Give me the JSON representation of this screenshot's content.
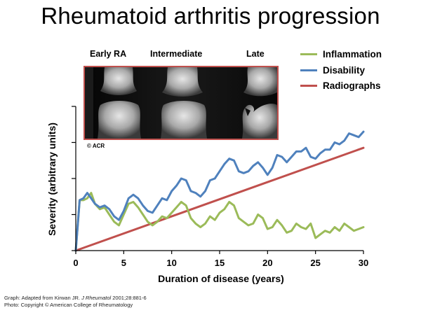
{
  "title": "Rheumatoid arthritis progression",
  "image_panel": {
    "labels": [
      "Early RA",
      "Intermediate",
      "Late"
    ],
    "credit": "© ACR"
  },
  "colors": {
    "inflammation": "#9bbb59",
    "disability": "#4f81bd",
    "radiographs": "#c0504d",
    "frame": "#c0504d"
  },
  "footnotes": {
    "graph_prefix": "Graph: Adapted from Kirwan JR. ",
    "graph_journal": "J Rheumatol",
    "graph_suffix": " 2001;28:881-6",
    "photo": "Photo: Copyright © American College of Rheumatology"
  },
  "chart_data": {
    "type": "line",
    "xlabel": "Duration of disease (years)",
    "ylabel": "Severity (arbitrary units)",
    "xlim": [
      0,
      30
    ],
    "ylim": [
      0,
      4
    ],
    "xticks": [
      0,
      5,
      10,
      15,
      20,
      25,
      30
    ],
    "yticks": [
      0,
      1,
      2,
      3,
      4
    ],
    "show_ytick_labels": false,
    "grid": false,
    "legend_position": "top-right",
    "series": [
      {
        "name": "Inflammation",
        "color": "#9bbb59",
        "x": [
          0,
          0.4,
          0.8,
          1.2,
          1.6,
          2.0,
          2.5,
          3.0,
          3.5,
          4.0,
          4.5,
          5.0,
          5.5,
          6.0,
          6.5,
          7.0,
          7.5,
          8.0,
          8.5,
          9.0,
          9.5,
          10.0,
          10.5,
          11.0,
          11.5,
          12.0,
          12.5,
          13.0,
          13.5,
          14.0,
          14.5,
          15.0,
          15.5,
          16.0,
          16.5,
          17.0,
          17.5,
          18.0,
          18.5,
          19.0,
          19.5,
          20.0,
          20.5,
          21.0,
          21.5,
          22.0,
          22.5,
          23.0,
          23.5,
          24.0,
          24.5,
          25.0,
          25.5,
          26.0,
          26.5,
          27.0,
          27.5,
          28.0,
          28.5,
          29.0,
          29.5,
          30.0
        ],
        "values": [
          0.0,
          1.4,
          1.4,
          1.45,
          1.6,
          1.3,
          1.15,
          1.2,
          1.0,
          0.8,
          0.7,
          1.0,
          1.3,
          1.35,
          1.2,
          1.0,
          0.8,
          0.7,
          0.8,
          0.95,
          0.9,
          1.05,
          1.2,
          1.35,
          1.25,
          0.9,
          0.75,
          0.65,
          0.75,
          0.95,
          0.85,
          1.05,
          1.15,
          1.35,
          1.25,
          0.9,
          0.8,
          0.7,
          0.75,
          1.0,
          0.9,
          0.6,
          0.65,
          0.85,
          0.7,
          0.5,
          0.55,
          0.75,
          0.65,
          0.6,
          0.75,
          0.35,
          0.45,
          0.55,
          0.5,
          0.65,
          0.55,
          0.75,
          0.65,
          0.55,
          0.6,
          0.65
        ]
      },
      {
        "name": "Disability",
        "color": "#4f81bd",
        "x": [
          0,
          0.4,
          0.8,
          1.2,
          1.6,
          2.0,
          2.5,
          3.0,
          3.5,
          4.0,
          4.5,
          5.0,
          5.5,
          6.0,
          6.5,
          7.0,
          7.5,
          8.0,
          8.5,
          9.0,
          9.5,
          10.0,
          10.5,
          11.0,
          11.5,
          12.0,
          12.5,
          13.0,
          13.5,
          14.0,
          14.5,
          15.0,
          15.5,
          16.0,
          16.5,
          17.0,
          17.5,
          18.0,
          18.5,
          19.0,
          19.5,
          20.0,
          20.5,
          21.0,
          21.5,
          22.0,
          22.5,
          23.0,
          23.5,
          24.0,
          24.5,
          25.0,
          25.5,
          26.0,
          26.5,
          27.0,
          27.5,
          28.0,
          28.5,
          29.0,
          29.5,
          30.0
        ],
        "values": [
          0.0,
          1.4,
          1.45,
          1.6,
          1.45,
          1.3,
          1.2,
          1.25,
          1.15,
          0.95,
          0.85,
          1.1,
          1.45,
          1.55,
          1.45,
          1.25,
          1.1,
          1.05,
          1.25,
          1.45,
          1.4,
          1.65,
          1.8,
          2.0,
          1.95,
          1.65,
          1.6,
          1.5,
          1.65,
          1.95,
          2.0,
          2.2,
          2.4,
          2.55,
          2.5,
          2.2,
          2.15,
          2.2,
          2.35,
          2.45,
          2.3,
          2.1,
          2.3,
          2.65,
          2.6,
          2.45,
          2.6,
          2.75,
          2.75,
          2.85,
          2.6,
          2.55,
          2.7,
          2.8,
          2.8,
          3.0,
          2.95,
          3.05,
          3.25,
          3.2,
          3.15,
          3.3
        ]
      },
      {
        "name": "Radiographs",
        "color": "#c0504d",
        "x": [
          0,
          30
        ],
        "values": [
          0.0,
          2.85
        ]
      }
    ]
  }
}
